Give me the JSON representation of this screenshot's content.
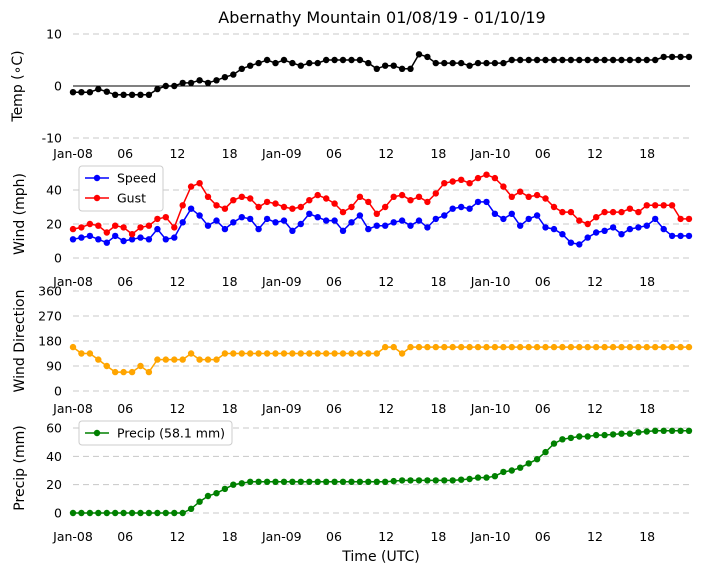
{
  "chart_data": {
    "type": "line",
    "title": "Abernathy Mountain 01/08/19 - 01/10/19",
    "xlabel": "Time (UTC)",
    "x_tick_labels": [
      "Jan-08",
      "06",
      "12",
      "18",
      "Jan-09",
      "06",
      "12",
      "18",
      "Jan-10",
      "06",
      "12",
      "18"
    ],
    "panels": [
      {
        "id": "temp",
        "ylabel": "Temp (∘C)",
        "ylim": [
          -10,
          10
        ],
        "yticks": [
          "-10",
          "0",
          "10"
        ],
        "zero_line": true,
        "legend": [],
        "series": [
          {
            "name": "Temp",
            "color": "#000000",
            "values": [
              -1.2,
              -1.2,
              -1.2,
              -0.6,
              -1.1,
              -1.7,
              -1.7,
              -1.7,
              -1.7,
              -1.7,
              -0.6,
              0,
              0,
              0.6,
              0.6,
              1.1,
              0.6,
              1.1,
              1.7,
              2.2,
              3.3,
              3.9,
              4.4,
              5,
              4.4,
              5,
              4.4,
              3.9,
              4.4,
              4.4,
              5,
              5,
              5,
              5,
              5,
              4.4,
              3.3,
              3.9,
              3.9,
              3.3,
              3.3,
              6.1,
              5.6,
              4.4,
              4.4,
              4.4,
              4.4,
              3.9,
              4.4,
              4.4,
              4.4,
              4.4,
              5,
              5,
              5,
              5,
              5,
              5,
              5,
              5,
              5,
              5,
              5,
              5,
              5,
              5,
              5,
              5,
              5,
              5,
              5.6,
              5.6,
              5.6,
              5.6
            ]
          }
        ]
      },
      {
        "id": "wind",
        "ylabel": "Wind (mph)",
        "ylim": [
          0,
          55
        ],
        "yticks": [
          "0",
          "20",
          "40"
        ],
        "zero_line": false,
        "legend": [
          "Speed",
          "Gust"
        ],
        "series": [
          {
            "name": "Speed",
            "color": "#0000ff",
            "values": [
              11,
              12,
              13,
              11,
              9,
              13,
              10,
              11,
              12,
              11,
              17,
              11,
              12,
              21,
              29,
              25,
              19,
              22,
              17,
              21,
              24,
              23,
              17,
              23,
              21,
              22,
              16,
              20,
              26,
              24,
              22,
              22,
              16,
              21,
              25,
              17,
              19,
              19,
              21,
              22,
              19,
              22,
              18,
              23,
              25,
              29,
              30,
              29,
              33,
              33,
              26,
              23,
              26,
              19,
              23,
              25,
              18,
              17,
              14,
              9,
              8,
              12,
              15,
              16,
              18,
              14,
              17,
              18,
              19,
              23,
              17,
              13,
              13,
              13
            ]
          },
          {
            "name": "Gust",
            "color": "#ff0000",
            "values": [
              17,
              18,
              20,
              19,
              15,
              19,
              18,
              14,
              18,
              19,
              23,
              24,
              18,
              31,
              42,
              44,
              36,
              31,
              29,
              34,
              36,
              35,
              30,
              33,
              32,
              30,
              29,
              30,
              34,
              37,
              35,
              32,
              27,
              30,
              36,
              33,
              26,
              30,
              36,
              37,
              34,
              36,
              33,
              38,
              44,
              45,
              46,
              44,
              47,
              49,
              47,
              42,
              36,
              39,
              36,
              37,
              35,
              30,
              27,
              27,
              22,
              20,
              24,
              27,
              27,
              27,
              29,
              27,
              31,
              31,
              31,
              31,
              23,
              23
            ]
          }
        ]
      },
      {
        "id": "dir",
        "ylabel": "Wind Direction",
        "ylim": [
          0,
          360
        ],
        "yticks": [
          "0",
          "90",
          "180",
          "270",
          "360"
        ],
        "zero_line": false,
        "legend": [],
        "series": [
          {
            "name": "Wind Direction",
            "color": "#ffa500",
            "values": [
              158,
              135,
              135,
              113,
              90,
              68,
              68,
              68,
              90,
              68,
              113,
              113,
              113,
              113,
              135,
              113,
              113,
              113,
              135,
              135,
              135,
              135,
              135,
              135,
              135,
              135,
              135,
              135,
              135,
              135,
              135,
              135,
              135,
              135,
              135,
              135,
              135,
              158,
              158,
              135,
              158,
              158,
              158,
              158,
              158,
              158,
              158,
              158,
              158,
              158,
              158,
              158,
              158,
              158,
              158,
              158,
              158,
              158,
              158,
              158,
              158,
              158,
              158,
              158,
              158,
              158,
              158,
              158,
              158,
              158,
              158,
              158,
              158,
              158
            ]
          }
        ]
      },
      {
        "id": "precip",
        "ylabel": "Precip (mm)",
        "ylim": [
          -3,
          65
        ],
        "yticks": [
          "0",
          "20",
          "40",
          "60"
        ],
        "zero_line": false,
        "legend": [
          "Precip (58.1 mm)"
        ],
        "series": [
          {
            "name": "Precip (58.1 mm)",
            "color": "#008000",
            "values": [
              0,
              0,
              0,
              0,
              0,
              0,
              0,
              0,
              0,
              0,
              0,
              0,
              0,
              0,
              3,
              8,
              12,
              14,
              17,
              20,
              21,
              22,
              22,
              22,
              22,
              22,
              22,
              22,
              22,
              22,
              22,
              22,
              22,
              22,
              22,
              22,
              22,
              22,
              22.5,
              23,
              23,
              23,
              23,
              23,
              23,
              23,
              23.5,
              24,
              25,
              25,
              26,
              29,
              30,
              32,
              35,
              38,
              43,
              49,
              52,
              53,
              54,
              54,
              55,
              55,
              55.5,
              56,
              56,
              57,
              57.5,
              58,
              58,
              58,
              58,
              58
            ]
          }
        ]
      }
    ]
  }
}
